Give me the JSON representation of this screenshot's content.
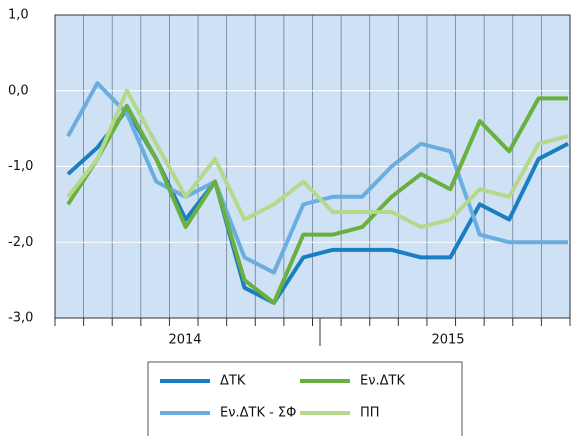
{
  "chart_data": {
    "type": "line",
    "categories": [
      null,
      null,
      null,
      null,
      null,
      null,
      null,
      null,
      null,
      null,
      null,
      null,
      null,
      null,
      null,
      null,
      null,
      null
    ],
    "year_labels": [
      "2014",
      "2015"
    ],
    "ylim": [
      -3,
      1
    ],
    "yticks": [
      {
        "value": 1,
        "label": "1,0"
      },
      {
        "value": 0,
        "label": "0,0"
      },
      {
        "value": -1,
        "label": "-1,0"
      },
      {
        "value": -2,
        "label": "-2,0"
      },
      {
        "value": -3,
        "label": "-3,0"
      }
    ],
    "grid": true,
    "legend": "bottom",
    "series": [
      {
        "name": "ΔΤΚ",
        "color": "#1a7fc1",
        "values": [
          -1.1,
          -0.75,
          -0.25,
          -0.9,
          -1.7,
          -1.2,
          -2.6,
          -2.8,
          -2.2,
          -2.1,
          -2.1,
          -2.1,
          -2.2,
          -2.2,
          -1.5,
          -1.7,
          -0.9,
          -0.7
        ]
      },
      {
        "name": "Εν.ΔΤΚ - ΣΦ",
        "color": "#6aaee0",
        "values": [
          -0.6,
          0.1,
          -0.3,
          -1.2,
          -1.4,
          -1.2,
          -2.2,
          -2.4,
          -1.5,
          -1.4,
          -1.4,
          -1.0,
          -0.7,
          -0.8,
          -1.9,
          -2.0,
          -2.0,
          -2.0
        ]
      },
      {
        "name": "Εν.ΔΤΚ",
        "color": "#6ab03f",
        "values": [
          -1.5,
          -0.9,
          -0.2,
          -0.9,
          -1.8,
          -1.2,
          -2.5,
          -2.8,
          -1.9,
          -1.9,
          -1.8,
          -1.4,
          -1.1,
          -1.3,
          -0.4,
          -0.8,
          -0.1,
          -0.1
        ]
      },
      {
        "name": "ΠΠ",
        "color": "#b5d98a",
        "values": [
          -1.4,
          -0.9,
          0.0,
          -0.7,
          -1.4,
          -0.9,
          -1.7,
          -1.5,
          -1.2,
          -1.6,
          -1.6,
          -1.6,
          -1.8,
          -1.7,
          -1.3,
          -1.4,
          -0.7,
          -0.6
        ]
      }
    ]
  }
}
